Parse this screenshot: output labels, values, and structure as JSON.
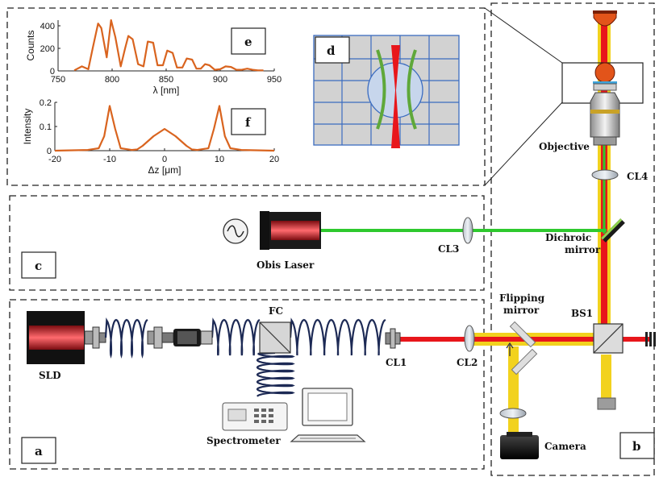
{
  "labels": {
    "objective": "Objective",
    "cl4": "CL4",
    "dichroic": [
      "Dichroic",
      "mirror"
    ],
    "cl3": "CL3",
    "obis": "Obis Laser",
    "flipping": [
      "Flipping",
      "mirror"
    ],
    "bs1": "BS1",
    "fc": "FC",
    "sld": "SLD",
    "cl1": "CL1",
    "cl2": "CL2",
    "spectrometer": "Spectrometer",
    "camera": "Camera"
  },
  "panels": {
    "a": "a",
    "b": "b",
    "c": "c",
    "d": "d",
    "e": "e",
    "f": "f"
  },
  "colors": {
    "beam_red": "#e8161b",
    "beam_yellow": "#f2d21e",
    "beam_green": "#2ec92e",
    "plot_line": "#d9641f",
    "fiber": "#1d2a55",
    "grid_blue": "#3b6cc0"
  },
  "chart_data": [
    {
      "type": "line",
      "panel": "e",
      "xlabel": "λ [nm]",
      "ylabel": "Counts",
      "xlim": [
        750,
        950
      ],
      "ylim": [
        0,
        450
      ],
      "xticks": [
        "750",
        "800",
        "850",
        "900",
        "950"
      ],
      "yticks": [
        "0",
        "200",
        "400"
      ],
      "series": [
        {
          "x": [
            765,
            772,
            778,
            782,
            787,
            790,
            795,
            799,
            803,
            808,
            812,
            815,
            819,
            824,
            829,
            833,
            838,
            842,
            847,
            851,
            856,
            860,
            865,
            869,
            874,
            878,
            882,
            886,
            890,
            895,
            900,
            905,
            910,
            915,
            920,
            925,
            930,
            935,
            940
          ],
          "values": [
            5,
            40,
            15,
            200,
            420,
            380,
            120,
            450,
            300,
            40,
            200,
            310,
            280,
            60,
            40,
            260,
            250,
            50,
            50,
            180,
            160,
            30,
            30,
            110,
            100,
            20,
            20,
            60,
            50,
            10,
            15,
            40,
            35,
            10,
            10,
            20,
            10,
            5,
            5
          ]
        }
      ]
    },
    {
      "type": "line",
      "panel": "f",
      "xlabel": "Δz [μm]",
      "ylabel": "Intensity",
      "xlim": [
        -20,
        20
      ],
      "ylim": [
        0,
        0.2
      ],
      "xticks": [
        "-20",
        "-10",
        "0",
        "10",
        "20"
      ],
      "yticks": [
        "0",
        "0.1",
        "0.2"
      ],
      "series": [
        {
          "x": [
            -20,
            -14,
            -12,
            -11,
            -10,
            -9,
            -8,
            -6,
            -5,
            -4,
            -2,
            0,
            2,
            4,
            5,
            6,
            8,
            9,
            10,
            11,
            12,
            14,
            20
          ],
          "values": [
            0,
            0.003,
            0.01,
            0.06,
            0.185,
            0.09,
            0.01,
            0.003,
            0.005,
            0.02,
            0.06,
            0.09,
            0.06,
            0.02,
            0.005,
            0.003,
            0.01,
            0.09,
            0.185,
            0.06,
            0.01,
            0.003,
            0
          ]
        }
      ]
    }
  ]
}
